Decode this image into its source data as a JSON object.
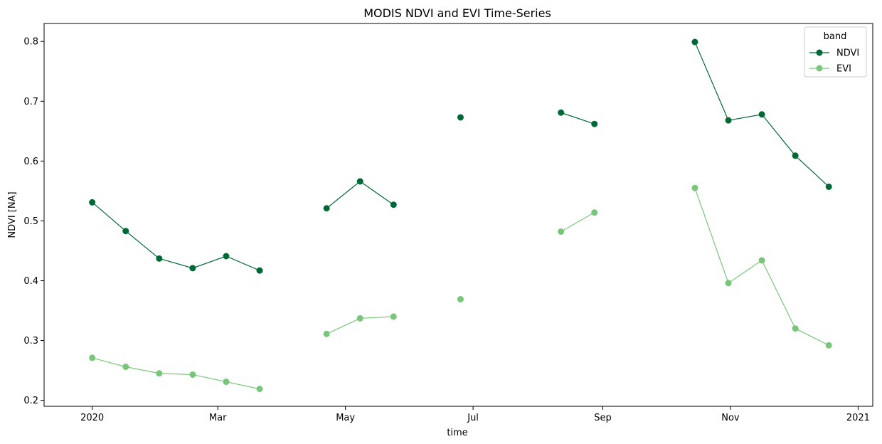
{
  "chart_data": {
    "type": "line",
    "title": "MODIS NDVI and EVI Time-Series",
    "xlabel": "time",
    "ylabel": "NDVI [NA]",
    "x_axis_type": "date",
    "xlim": [
      "2019-12-09",
      "2021-01-08"
    ],
    "ylim": [
      0.19,
      0.83
    ],
    "x_ticks": [
      {
        "date": "2020-01-01",
        "label": "2020"
      },
      {
        "date": "2020-03-01",
        "label": "Mar"
      },
      {
        "date": "2020-05-01",
        "label": "May"
      },
      {
        "date": "2020-07-01",
        "label": "Jul"
      },
      {
        "date": "2020-09-01",
        "label": "Sep"
      },
      {
        "date": "2020-11-01",
        "label": "Nov"
      },
      {
        "date": "2021-01-01",
        "label": "2021"
      }
    ],
    "y_ticks": [
      0.2,
      0.3,
      0.4,
      0.5,
      0.6,
      0.7,
      0.8
    ],
    "y_tick_labels": [
      "0.2",
      "0.3",
      "0.4",
      "0.5",
      "0.6",
      "0.7",
      "0.8"
    ],
    "grid": false,
    "legend": {
      "title": "band",
      "placement": "top-right"
    },
    "x": [
      "2020-01-01",
      "2020-01-17",
      "2020-02-02",
      "2020-02-18",
      "2020-03-05",
      "2020-03-21",
      "2020-04-06",
      "2020-04-22",
      "2020-05-08",
      "2020-05-24",
      "2020-06-09",
      "2020-06-25",
      "2020-07-11",
      "2020-07-27",
      "2020-08-12",
      "2020-08-28",
      "2020-09-13",
      "2020-09-29",
      "2020-10-15",
      "2020-10-31",
      "2020-11-16",
      "2020-12-02",
      "2020-12-18"
    ],
    "series": [
      {
        "name": "NDVI",
        "color": "#006834",
        "values": [
          0.531,
          0.483,
          0.437,
          0.421,
          0.441,
          0.417,
          null,
          0.521,
          0.566,
          0.527,
          null,
          0.673,
          null,
          null,
          0.681,
          0.662,
          null,
          null,
          0.799,
          0.668,
          0.678,
          0.609,
          0.557
        ]
      },
      {
        "name": "EVI",
        "color": "#78c679",
        "values": [
          0.271,
          0.256,
          0.245,
          0.243,
          0.231,
          0.219,
          null,
          0.311,
          0.337,
          0.34,
          null,
          0.369,
          null,
          null,
          0.482,
          0.514,
          null,
          null,
          0.555,
          0.396,
          0.434,
          0.32,
          0.292
        ]
      }
    ]
  }
}
